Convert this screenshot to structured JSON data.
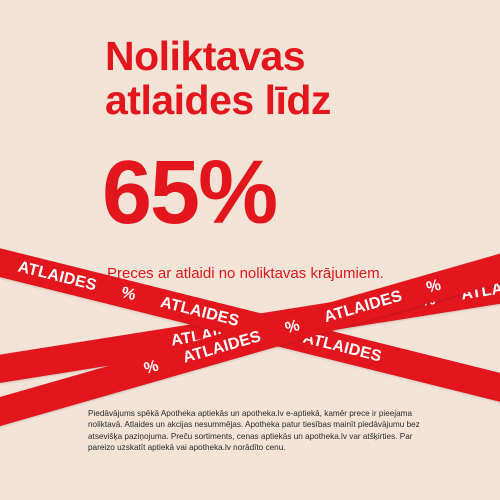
{
  "headline": {
    "line1": "Noliktavas",
    "line2": "atlaides līdz",
    "percent": "65%"
  },
  "subtitle": "Preces ar atlaidi no noliktavas krājumiem.",
  "tape": {
    "label": "ATLAIDES",
    "symbol": "%"
  },
  "disclaimer": "Piedāvājums spēkā Apotheka aptiekās un apotheka.lv e-aptiekā, kamēr prece ir pieejama noliktavā. Atlaides un akcijas nesummējas. Apotheka patur tiesības mainīt piedāvājumu bez atsevišķa paziņojuma. Preču sortiments, cenas aptiekās un apotheka.lv var atšķirties. Par pareizo uzskatīt aptiekā vai apotheka.lv norādīto cenu.",
  "colors": {
    "background": "#f3e4d7",
    "accent": "#e3161d",
    "tape_text": "#ffffff",
    "body_text": "#2a2a2a"
  }
}
